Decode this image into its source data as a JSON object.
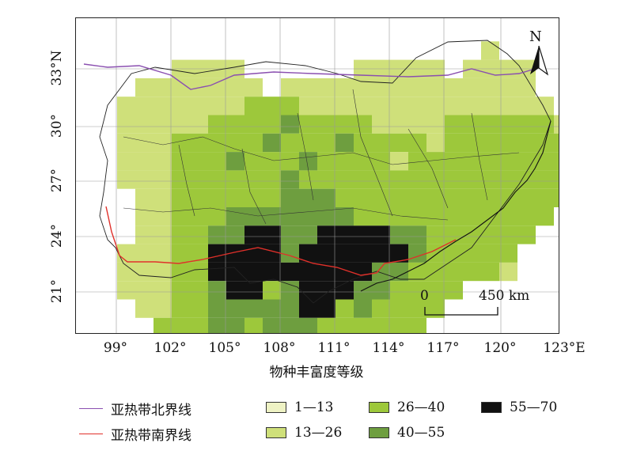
{
  "title": "物种丰富度等级",
  "axes": {
    "x_ticks": [
      "99°",
      "102°",
      "105°",
      "108°",
      "111°",
      "114°",
      "117°",
      "120°",
      "123°E"
    ],
    "y_ticks": [
      "33°N",
      "30°",
      "27°",
      "24°",
      "21°"
    ]
  },
  "north": {
    "label": "N"
  },
  "scale": {
    "start": "0",
    "end": "450 km"
  },
  "legend": {
    "lines": [
      {
        "label": "亚热带北界线",
        "color": "#8a4fb0"
      },
      {
        "label": "亚热带南界线",
        "color": "#e0302a"
      }
    ],
    "classes": [
      {
        "label": "1—13",
        "color": "#eef2c4"
      },
      {
        "label": "13—26",
        "color": "#cfe07a"
      },
      {
        "label": "26—40",
        "color": "#9dc83b"
      },
      {
        "label": "40—55",
        "color": "#6e9e3f"
      },
      {
        "label": "55—70",
        "color": "#111111"
      }
    ]
  }
}
